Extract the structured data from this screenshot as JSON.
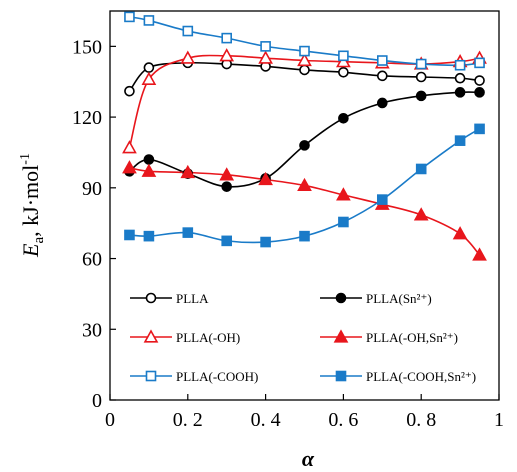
{
  "chart_data": {
    "type": "line",
    "xlabel": "α",
    "ylabel": {
      "main": "E",
      "sub": "a",
      "unit": ", kJ·mol",
      "sup": "-1"
    },
    "xlim": [
      0,
      1
    ],
    "ylim": [
      0,
      165
    ],
    "x_ticks": [
      "0",
      "0. 2",
      "0. 4",
      "0. 6",
      "0. 8",
      "1"
    ],
    "x_tick_values": [
      0,
      0.2,
      0.4,
      0.6,
      0.8,
      1
    ],
    "y_ticks": [
      "0",
      "30",
      "60",
      "90",
      "120",
      "150"
    ],
    "y_tick_values": [
      0,
      30,
      60,
      90,
      120,
      150
    ],
    "grid": false,
    "legend_position": "bottom",
    "series": [
      {
        "name": "PLLA",
        "color": "#000000",
        "marker": "circle-open",
        "x": [
          0.05,
          0.1,
          0.2,
          0.3,
          0.4,
          0.5,
          0.6,
          0.7,
          0.8,
          0.9,
          0.95
        ],
        "y": [
          131,
          141,
          143,
          142.5,
          141.5,
          140,
          139,
          137.5,
          137,
          136.5,
          135.5
        ]
      },
      {
        "name": "PLLA(Sn²⁺)",
        "color": "#000000",
        "marker": "circle-filled",
        "x": [
          0.05,
          0.1,
          0.2,
          0.3,
          0.4,
          0.5,
          0.6,
          0.7,
          0.8,
          0.9,
          0.95
        ],
        "y": [
          97,
          102,
          96,
          90.5,
          94,
          108,
          119.5,
          126,
          129,
          130.5,
          130.5
        ]
      },
      {
        "name": "PLLA(-OH)",
        "color": "#e8161c",
        "marker": "triangle-open",
        "x": [
          0.05,
          0.1,
          0.2,
          0.3,
          0.4,
          0.5,
          0.6,
          0.7,
          0.8,
          0.9,
          0.95
        ],
        "y": [
          107,
          136,
          145,
          146,
          145,
          144,
          143.5,
          143,
          142.5,
          143.5,
          145
        ]
      },
      {
        "name": "PLLA(-OH,Sn²⁺)",
        "color": "#e8161c",
        "marker": "triangle-filled",
        "x": [
          0.05,
          0.1,
          0.2,
          0.3,
          0.4,
          0.5,
          0.6,
          0.7,
          0.8,
          0.9,
          0.95
        ],
        "y": [
          98.5,
          97,
          96.5,
          95.5,
          93.5,
          91,
          87,
          83,
          78.5,
          70.5,
          61.5
        ]
      },
      {
        "name": "PLLA(-COOH)",
        "color": "#1a7bc8",
        "marker": "square-open",
        "x": [
          0.05,
          0.1,
          0.2,
          0.3,
          0.4,
          0.5,
          0.6,
          0.7,
          0.8,
          0.9,
          0.95
        ],
        "y": [
          162.5,
          161,
          156.5,
          153.5,
          150,
          148,
          146,
          144,
          142.5,
          142,
          143
        ]
      },
      {
        "name": "PLLA(-COOH,Sn²⁺)",
        "color": "#1a7bc8",
        "marker": "square-filled",
        "x": [
          0.05,
          0.1,
          0.2,
          0.3,
          0.4,
          0.5,
          0.6,
          0.7,
          0.8,
          0.9,
          0.95
        ],
        "y": [
          70,
          69.5,
          71,
          67.5,
          67,
          69.5,
          75.5,
          85,
          98,
          110,
          115
        ]
      }
    ]
  }
}
